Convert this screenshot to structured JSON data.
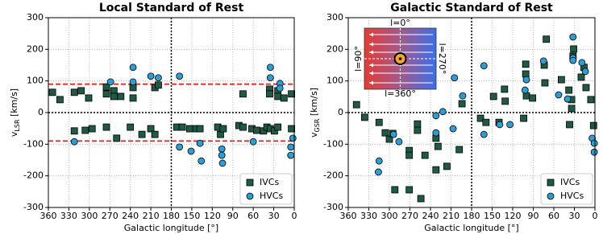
{
  "chart_data": [
    {
      "type": "scatter",
      "title": "Local Standard of Rest",
      "xlabel": "Galactic longitude [°]",
      "ylabel": [
        "v",
        "LSR",
        " [km/s]"
      ],
      "xlim": [
        360,
        0
      ],
      "xticks": [
        360,
        330,
        300,
        270,
        240,
        210,
        180,
        150,
        120,
        90,
        60,
        30,
        0
      ],
      "ylim": [
        -300,
        300
      ],
      "yticks": [
        -300,
        -200,
        -100,
        0,
        100,
        200,
        300
      ],
      "grid": true,
      "legend": "lower right",
      "reference_lines": {
        "x": [
          180
        ],
        "y": [
          0
        ]
      },
      "threshold_lines": {
        "y": [
          -90,
          90
        ],
        "color": "#e8191a"
      },
      "series": [
        {
          "name": "IVCs",
          "color": "#1f5a44",
          "marker": "square",
          "x": [
            354,
            343,
            322,
            312,
            301,
            275,
            275,
            264,
            264,
            254,
            236,
            236,
            204,
            199,
            75,
            36,
            36,
            24,
            24,
            15,
            4,
            322,
            306,
            296,
            275,
            260,
            240,
            223,
            210,
            204,
            172,
            164,
            153,
            144,
            138,
            112,
            108,
            104,
            81,
            75,
            62,
            55,
            45,
            40,
            35,
            29,
            24,
            4
          ],
          "y": [
            64,
            41,
            64,
            69,
            46,
            81,
            59,
            69,
            51,
            51,
            46,
            79,
            79,
            87,
            59,
            74,
            59,
            69,
            51,
            46,
            59,
            -58,
            -56,
            -51,
            -46,
            -81,
            -46,
            -69,
            -51,
            -69,
            -46,
            -46,
            -51,
            -51,
            -51,
            -46,
            -69,
            -51,
            -41,
            -46,
            -51,
            -56,
            -58,
            -46,
            -51,
            -58,
            -46,
            -51
          ]
        },
        {
          "name": "HVCs",
          "color": "#2a9fd6",
          "marker": "circle",
          "x": [
            322,
            269,
            236,
            236,
            210,
            199,
            168,
            168,
            151,
            138,
            136,
            106,
            106,
            105,
            60,
            35,
            35,
            21,
            21,
            5,
            5,
            2
          ],
          "y": [
            -92,
            97,
            143,
            97,
            115,
            110,
            115,
            -109,
            -122,
            -97,
            -153,
            -115,
            -135,
            -160,
            -92,
            143,
            110,
            92,
            77,
            -109,
            -135,
            -81
          ]
        }
      ]
    },
    {
      "type": "scatter",
      "title": "Galactic Standard of Rest",
      "xlabel": "Galactic longitude [°]",
      "ylabel": [
        "v",
        "GSR",
        " [km/s]"
      ],
      "xlim": [
        360,
        0
      ],
      "xticks": [
        360,
        330,
        300,
        270,
        240,
        210,
        180,
        150,
        120,
        90,
        60,
        30,
        0
      ],
      "ylim": [
        -300,
        300
      ],
      "yticks": [
        -300,
        -200,
        -100,
        0,
        100,
        200,
        300
      ],
      "grid": true,
      "legend": "lower right",
      "reference_lines": {
        "x": [
          180
        ],
        "y": [
          0
        ]
      },
      "inset_labels": {
        "top": "l=0°",
        "bottom": "l=360°",
        "left": "l=90°",
        "right": "l=270°"
      },
      "series": [
        {
          "name": "IVCs",
          "color": "#1f5a44",
          "marker": "square",
          "x": [
            348,
            336,
            315,
            306,
            300,
            295,
            292,
            271,
            271,
            271,
            259,
            259,
            254,
            248,
            232,
            229,
            232,
            216,
            198,
            194,
            167,
            159,
            148,
            140,
            132,
            131,
            104,
            101,
            101,
            100,
            91,
            74,
            73,
            71,
            49,
            38,
            37,
            34,
            34,
            32,
            31,
            20,
            16,
            13,
            6,
            2
          ],
          "y": [
            25,
            -15,
            -31,
            -64,
            -84,
            -66,
            -244,
            -120,
            -135,
            -244,
            -36,
            -56,
            -272,
            -135,
            -81,
            -107,
            -181,
            -170,
            -117,
            28,
            -18,
            -31,
            51,
            -31,
            74,
            36,
            -18,
            153,
            122,
            53,
            46,
            150,
            94,
            232,
            104,
            71,
            -38,
            41,
            13,
            178,
            201,
            112,
            143,
            79,
            41,
            -41
          ]
        },
        {
          "name": "HVCs",
          "color": "#2a9fd6",
          "marker": "circle",
          "x": [
            316,
            315,
            294,
            286,
            232,
            232,
            222,
            207,
            205,
            193,
            162,
            162,
            139,
            124,
            102,
            100,
            75,
            53,
            40,
            32,
            32,
            32,
            19,
            14,
            4,
            1,
            1
          ],
          "y": [
            -188,
            -153,
            -69,
            -92,
            -10,
            -64,
            3,
            -51,
            110,
            53,
            -69,
            148,
            -38,
            -38,
            71,
            104,
            163,
            56,
            43,
            239,
            173,
            165,
            158,
            130,
            -81,
            -97,
            -125
          ]
        }
      ]
    }
  ]
}
